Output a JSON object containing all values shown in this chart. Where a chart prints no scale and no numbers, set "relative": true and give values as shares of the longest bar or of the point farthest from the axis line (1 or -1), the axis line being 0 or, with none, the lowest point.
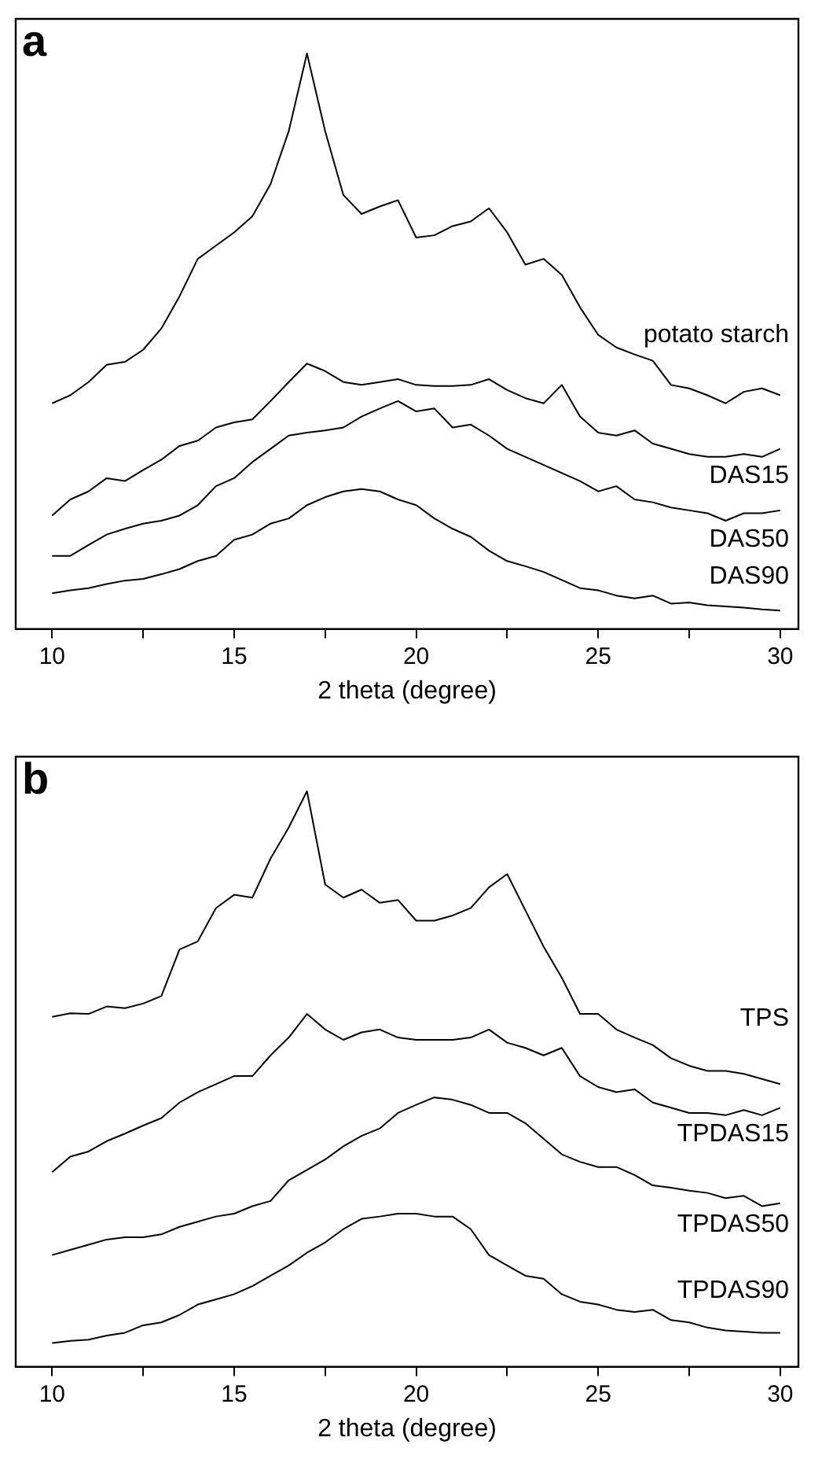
{
  "chart_data": [
    {
      "type": "line",
      "title": "a",
      "xlabel": "2 theta (degree)",
      "relative": true,
      "xlim": [
        9,
        30.5
      ],
      "xticks": [
        10,
        {
          "value": 12.5,
          "label": null
        },
        15,
        {
          "value": 17.5,
          "label": null
        },
        20,
        {
          "value": 22.5,
          "label": null
        },
        25,
        {
          "value": 27.5,
          "label": null
        },
        30
      ],
      "x": [
        10,
        10.5,
        11,
        11.5,
        12,
        12.5,
        13,
        13.5,
        14,
        14.5,
        15,
        15.5,
        16,
        16.5,
        17,
        17.5,
        18,
        18.5,
        19,
        19.5,
        20,
        20.5,
        21,
        21.5,
        22,
        22.5,
        23,
        23.5,
        24,
        24.5,
        25,
        25.5,
        26,
        26.5,
        27,
        27.5,
        28,
        28.5,
        29,
        29.5,
        30
      ],
      "series": [
        {
          "name": "potato starch",
          "color": "#000000",
          "values": [
            0.392,
            0.406,
            0.429,
            0.459,
            0.464,
            0.485,
            0.522,
            0.578,
            0.643,
            0.666,
            0.689,
            0.717,
            0.773,
            0.865,
            1,
            0.865,
            0.754,
            0.721,
            0.734,
            0.745,
            0.68,
            0.684,
            0.7,
            0.708,
            0.731,
            0.689,
            0.633,
            0.643,
            0.615,
            0.559,
            0.511,
            0.489,
            0.477,
            0.466,
            0.424,
            0.418,
            0.406,
            0.392,
            0.412,
            0.418,
            0.406
          ]
        },
        {
          "name": "DAS15",
          "color": "#000000",
          "values": [
            0.197,
            0.225,
            0.239,
            0.262,
            0.257,
            0.276,
            0.294,
            0.318,
            0.327,
            0.35,
            0.359,
            0.364,
            0.396,
            0.429,
            0.461,
            0.448,
            0.429,
            0.424,
            0.429,
            0.434,
            0.424,
            0.422,
            0.422,
            0.424,
            0.434,
            0.415,
            0.401,
            0.392,
            0.424,
            0.369,
            0.341,
            0.336,
            0.345,
            0.322,
            0.313,
            0.304,
            0.299,
            0.299,
            0.304,
            0.299,
            0.313
          ]
        },
        {
          "name": "DAS50",
          "color": "#000000",
          "values": [
            0.127,
            0.127,
            0.146,
            0.164,
            0.174,
            0.183,
            0.188,
            0.197,
            0.215,
            0.248,
            0.262,
            0.29,
            0.313,
            0.336,
            0.341,
            0.345,
            0.35,
            0.369,
            0.383,
            0.396,
            0.378,
            0.383,
            0.35,
            0.355,
            0.336,
            0.313,
            0.299,
            0.285,
            0.271,
            0.257,
            0.239,
            0.248,
            0.225,
            0.22,
            0.211,
            0.206,
            0.201,
            0.188,
            0.201,
            0.201,
            0.206
          ]
        },
        {
          "name": "DAS90",
          "color": "#000000",
          "values": [
            0.062,
            0.067,
            0.071,
            0.078,
            0.084,
            0.087,
            0.095,
            0.104,
            0.118,
            0.127,
            0.155,
            0.164,
            0.183,
            0.192,
            0.215,
            0.229,
            0.239,
            0.243,
            0.239,
            0.225,
            0.215,
            0.192,
            0.174,
            0.16,
            0.136,
            0.118,
            0.109,
            0.099,
            0.085,
            0.071,
            0.067,
            0.058,
            0.053,
            0.058,
            0.044,
            0.046,
            0.041,
            0.039,
            0.037,
            0.034,
            0.032
          ]
        }
      ]
    },
    {
      "type": "line",
      "title": "b",
      "xlabel": "2 theta (degree)",
      "relative": true,
      "xlim": [
        9,
        30.5
      ],
      "xticks": [
        10,
        {
          "value": 12.5,
          "label": null
        },
        15,
        {
          "value": 17.5,
          "label": null
        },
        20,
        {
          "value": 22.5,
          "label": null
        },
        25,
        {
          "value": 27.5,
          "label": null
        },
        30
      ],
      "x": [
        10,
        10.5,
        11,
        11.5,
        12,
        12.5,
        13,
        13.5,
        14,
        14.5,
        15,
        15.5,
        16,
        16.5,
        17,
        17.5,
        18,
        18.5,
        19,
        19.5,
        20,
        20.5,
        21,
        21.5,
        22,
        22.5,
        23,
        23.5,
        24,
        24.5,
        25,
        25.5,
        26,
        26.5,
        27,
        27.5,
        28,
        28.5,
        29,
        29.5,
        30
      ],
      "series": [
        {
          "name": "TPS",
          "color": "#000000",
          "values": [
            0.608,
            0.614,
            0.613,
            0.626,
            0.623,
            0.631,
            0.644,
            0.725,
            0.739,
            0.797,
            0.82,
            0.815,
            0.883,
            0.937,
            1,
            0.838,
            0.815,
            0.829,
            0.806,
            0.811,
            0.775,
            0.775,
            0.784,
            0.797,
            0.833,
            0.856,
            0.793,
            0.73,
            0.676,
            0.613,
            0.613,
            0.586,
            0.572,
            0.559,
            0.536,
            0.523,
            0.514,
            0.514,
            0.509,
            0.5,
            0.491
          ]
        },
        {
          "name": "TPDAS15",
          "color": "#000000",
          "values": [
            0.338,
            0.365,
            0.374,
            0.392,
            0.405,
            0.419,
            0.432,
            0.459,
            0.477,
            0.491,
            0.505,
            0.505,
            0.541,
            0.572,
            0.613,
            0.586,
            0.568,
            0.581,
            0.586,
            0.572,
            0.568,
            0.568,
            0.568,
            0.572,
            0.586,
            0.563,
            0.554,
            0.541,
            0.554,
            0.505,
            0.486,
            0.477,
            0.482,
            0.459,
            0.45,
            0.441,
            0.441,
            0.437,
            0.446,
            0.437,
            0.45
          ]
        },
        {
          "name": "TPDAS50",
          "color": "#000000",
          "values": [
            0.194,
            0.203,
            0.212,
            0.221,
            0.225,
            0.225,
            0.23,
            0.243,
            0.252,
            0.261,
            0.266,
            0.279,
            0.288,
            0.324,
            0.342,
            0.36,
            0.383,
            0.401,
            0.414,
            0.441,
            0.455,
            0.468,
            0.464,
            0.455,
            0.441,
            0.441,
            0.423,
            0.396,
            0.369,
            0.356,
            0.347,
            0.347,
            0.333,
            0.315,
            0.311,
            0.306,
            0.302,
            0.293,
            0.297,
            0.279,
            0.284
          ]
        },
        {
          "name": "TPDAS90",
          "color": "#000000",
          "values": [
            0.041,
            0.045,
            0.047,
            0.054,
            0.059,
            0.072,
            0.077,
            0.09,
            0.108,
            0.117,
            0.126,
            0.14,
            0.158,
            0.176,
            0.198,
            0.216,
            0.239,
            0.257,
            0.261,
            0.266,
            0.266,
            0.261,
            0.261,
            0.239,
            0.194,
            0.176,
            0.158,
            0.153,
            0.126,
            0.113,
            0.108,
            0.099,
            0.095,
            0.099,
            0.081,
            0.077,
            0.068,
            0.063,
            0.061,
            0.059,
            0.059
          ]
        }
      ]
    }
  ]
}
